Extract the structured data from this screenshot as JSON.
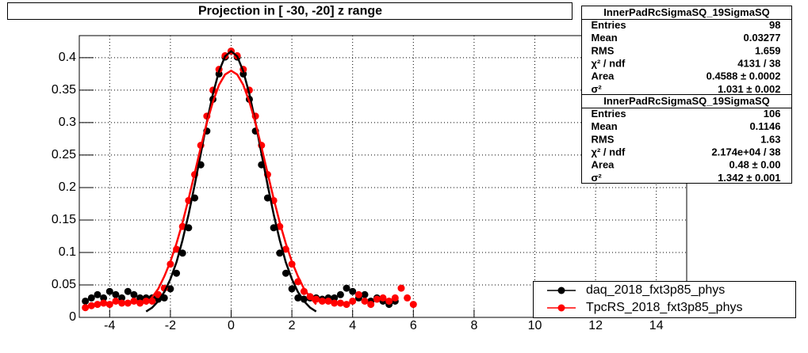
{
  "chart_data": {
    "type": "scatter",
    "title": "Projection in [ -30, -20] z range",
    "x": [
      -4.8,
      -4.6,
      -4.4,
      -4.2,
      -4.0,
      -3.8,
      -3.6,
      -3.4,
      -3.2,
      -3.0,
      -2.8,
      -2.6,
      -2.4,
      -2.2,
      -2.0,
      -1.8,
      -1.6,
      -1.4,
      -1.2,
      -1.0,
      -0.8,
      -0.6,
      -0.4,
      -0.2,
      0,
      0.2,
      0.4,
      0.6,
      0.8,
      1.0,
      1.2,
      1.4,
      1.6,
      1.8,
      2.0,
      2.2,
      2.4,
      2.6,
      2.8,
      3.0,
      3.2,
      3.4,
      3.6,
      3.8,
      4.0,
      4.2,
      4.4,
      4.6,
      4.8,
      5.0,
      5.2,
      5.4,
      5.6,
      5.8,
      6.0
    ],
    "xlim": [
      -5,
      15
    ],
    "xticks": [
      -4,
      -2,
      0,
      2,
      4,
      6,
      8,
      10,
      12,
      14
    ],
    "ylim": [
      0,
      0.434
    ],
    "yticks": [
      0,
      0.05,
      0.1,
      0.15,
      0.2,
      0.25,
      0.3,
      0.35,
      0.4
    ],
    "grid": true,
    "series": [
      {
        "name": "daq_2018_fxt3p85_phys",
        "color": "#000000",
        "values": [
          0.025,
          0.03,
          0.035,
          0.03,
          0.04,
          0.035,
          0.03,
          0.04,
          0.035,
          0.03,
          0.03,
          0.03,
          0.028,
          0.03,
          0.044,
          0.068,
          0.099,
          0.138,
          0.184,
          0.235,
          0.287,
          0.336,
          0.375,
          0.401,
          0.41,
          0.401,
          0.375,
          0.336,
          0.287,
          0.235,
          0.184,
          0.138,
          0.099,
          0.068,
          0.044,
          0.03,
          0.028,
          0.03,
          0.03,
          0.028,
          0.03,
          0.03,
          0.035,
          0.045,
          0.04,
          0.03,
          0.035,
          0.025,
          0.03,
          0.025,
          0.02,
          0.025,
          null,
          null,
          null
        ],
        "fit": [
          null,
          null,
          null,
          null,
          null,
          null,
          null,
          null,
          null,
          null,
          0.009,
          0.015,
          0.025,
          0.039,
          0.059,
          0.085,
          0.119,
          0.159,
          0.204,
          0.252,
          0.301,
          0.344,
          0.379,
          0.402,
          0.41,
          0.402,
          0.379,
          0.344,
          0.301,
          0.252,
          0.204,
          0.159,
          0.119,
          0.085,
          0.059,
          0.039,
          0.025,
          0.015,
          0.009,
          null,
          null,
          null,
          null,
          null,
          null,
          null,
          null,
          null,
          null,
          null,
          null,
          null,
          null,
          null,
          null
        ]
      },
      {
        "name": "TpcRS_2018_fxt3p85_phys",
        "color": "#ff0000",
        "values": [
          0.015,
          0.018,
          0.02,
          0.022,
          0.02,
          0.025,
          0.022,
          0.022,
          0.025,
          0.022,
          0.025,
          0.025,
          0.035,
          0.045,
          0.082,
          0.105,
          0.14,
          0.18,
          0.22,
          0.265,
          0.31,
          0.35,
          0.382,
          0.403,
          0.41,
          0.403,
          0.382,
          0.35,
          0.31,
          0.265,
          0.22,
          0.18,
          0.14,
          0.105,
          0.082,
          0.055,
          0.04,
          0.032,
          0.028,
          0.025,
          0.025,
          0.022,
          0.022,
          0.02,
          0.025,
          0.035,
          0.025,
          0.02,
          0.028,
          0.03,
          0.025,
          0.03,
          0.045,
          0.03,
          0.02
        ],
        "fit": [
          null,
          null,
          null,
          null,
          null,
          null,
          null,
          null,
          null,
          null,
          0.02,
          0.031,
          0.044,
          0.063,
          0.086,
          0.114,
          0.146,
          0.183,
          0.222,
          0.262,
          0.3,
          0.332,
          0.358,
          0.374,
          0.38,
          0.374,
          0.358,
          0.332,
          0.3,
          0.262,
          0.222,
          0.183,
          0.146,
          0.114,
          0.086,
          0.063,
          0.044,
          0.031,
          0.02,
          null,
          null,
          null,
          null,
          null,
          null,
          null,
          null,
          null,
          null,
          null,
          null,
          null,
          null,
          null,
          null
        ]
      }
    ],
    "stats": [
      {
        "title": "InnerPadRcSigmaSQ_19SigmaSQ",
        "rows": [
          {
            "label": "Entries",
            "value": 98
          },
          {
            "label": "Mean",
            "value": 0.03277
          },
          {
            "label": "RMS",
            "value": 1.659
          },
          {
            "label": "χ² / ndf",
            "value": "4131 / 38"
          },
          {
            "label": "Area",
            "value": "0.4588 ± 0.0002"
          },
          {
            "label": "σ²",
            "value": "1.031 ± 0.002"
          }
        ]
      },
      {
        "title": "InnerPadRcSigmaSQ_19SigmaSQ",
        "rows": [
          {
            "label": "Entries",
            "value": 106
          },
          {
            "label": "Mean",
            "value": 0.1146
          },
          {
            "label": "RMS",
            "value": 1.63
          },
          {
            "label": "χ² / ndf",
            "value": "2.174e+04 / 38"
          },
          {
            "label": "Area",
            "value": "0.48 ± 0.00"
          },
          {
            "label": "σ²",
            "value": "1.342 ± 0.001"
          }
        ]
      }
    ]
  }
}
